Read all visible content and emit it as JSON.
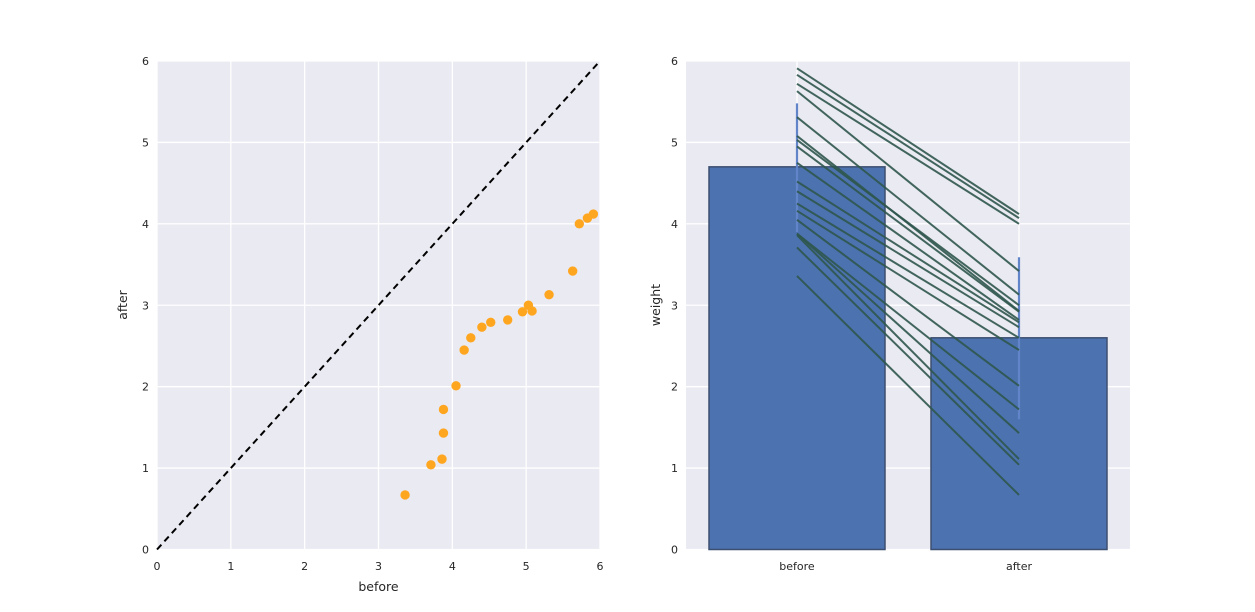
{
  "figure": {
    "background": "#ffffff",
    "axes_background": "#eaeaf2",
    "grid_color": "#ffffff",
    "text_color": "#262626"
  },
  "chart_data": [
    {
      "type": "scatter",
      "xlabel": "before",
      "ylabel": "after",
      "xlim": [
        0,
        6
      ],
      "ylim": [
        0,
        6
      ],
      "xticks": [
        0,
        1,
        2,
        3,
        4,
        5,
        6
      ],
      "yticks": [
        0,
        1,
        2,
        3,
        4,
        5,
        6
      ],
      "grid": true,
      "marker_color": "#ffa621",
      "identity_line": {
        "from": [
          0,
          0
        ],
        "to": [
          6,
          6
        ],
        "style": "dashed",
        "color": "#000000"
      },
      "points": [
        [
          3.36,
          0.67
        ],
        [
          3.71,
          1.04
        ],
        [
          3.86,
          1.11
        ],
        [
          3.88,
          1.43
        ],
        [
          3.88,
          1.72
        ],
        [
          4.05,
          2.01
        ],
        [
          4.16,
          2.45
        ],
        [
          4.25,
          2.6
        ],
        [
          4.4,
          2.73
        ],
        [
          4.52,
          2.79
        ],
        [
          4.75,
          2.82
        ],
        [
          4.95,
          2.92
        ],
        [
          5.03,
          3.0
        ],
        [
          5.08,
          2.93
        ],
        [
          5.31,
          3.13
        ],
        [
          5.63,
          3.42
        ],
        [
          5.72,
          4.0
        ],
        [
          5.83,
          4.07
        ],
        [
          5.91,
          4.12
        ]
      ]
    },
    {
      "type": "bar",
      "categories": [
        "before",
        "after"
      ],
      "values": [
        4.7,
        2.6
      ],
      "ylabel": "weight",
      "ylim": [
        0,
        6
      ],
      "yticks": [
        0,
        1,
        2,
        3,
        4,
        5,
        6
      ],
      "grid": true,
      "bar_color": "#4c72b0",
      "bar_edge_color": "#3c4f70",
      "error_bars": [
        [
          3.9,
          5.48
        ],
        [
          1.6,
          3.59
        ]
      ],
      "error_bar_color": "#6285ca",
      "paired_lines": {
        "color": "#2f564c",
        "pairs": [
          [
            3.36,
            0.67
          ],
          [
            3.71,
            1.04
          ],
          [
            3.86,
            1.11
          ],
          [
            3.88,
            1.43
          ],
          [
            3.88,
            1.72
          ],
          [
            4.05,
            2.01
          ],
          [
            4.16,
            2.45
          ],
          [
            4.25,
            2.6
          ],
          [
            4.4,
            2.73
          ],
          [
            4.52,
            2.79
          ],
          [
            4.75,
            2.82
          ],
          [
            4.95,
            2.92
          ],
          [
            5.03,
            3.0
          ],
          [
            5.08,
            2.93
          ],
          [
            5.31,
            3.13
          ],
          [
            5.63,
            3.42
          ],
          [
            5.72,
            4.0
          ],
          [
            5.83,
            4.07
          ],
          [
            5.91,
            4.12
          ]
        ]
      }
    }
  ]
}
